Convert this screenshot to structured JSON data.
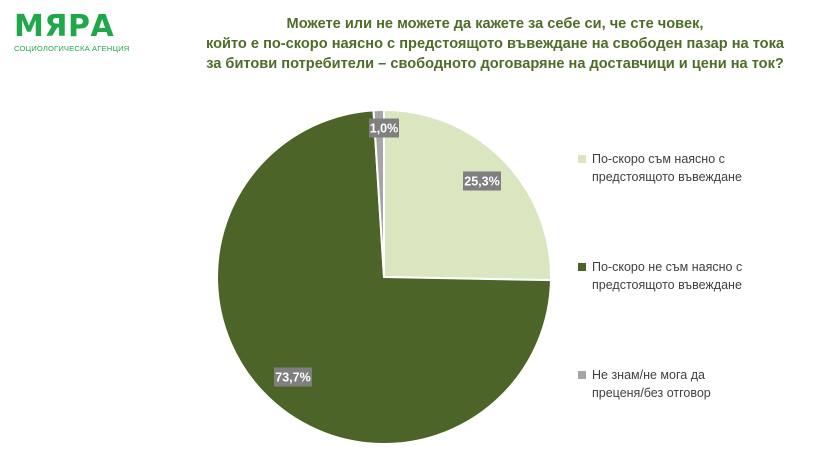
{
  "logo": {
    "name": "МЯРА",
    "subtitle": "СОЦИОЛОГИЧЕСКА АГЕНЦИЯ",
    "color": "#1fa84a"
  },
  "title_lines": [
    "Можете или не можете да кажете за себе си, че сте човек,",
    "който е по-скоро наясно с предстоящото въвеждане на свободен пазар на тока",
    "за битови потребители – свободното договаряне на доставчици и цени на ток?"
  ],
  "chart_data": {
    "type": "pie",
    "title": "Можете или не можете да кажете за себе си, че сте човек, който е по-скоро наясно с предстоящото въвеждане на свободен пазар на тока за битови потребители – свободното договаряне на доставчици и цени на ток?",
    "slices": [
      {
        "name": "По-скоро съм наясно с предстоящото въвеждане",
        "legend_lines": [
          "По-скоро съм наясно с",
          "предстоящото въвеждане"
        ],
        "value": 25.3,
        "label": "25,3%",
        "color": "#d9e6c0"
      },
      {
        "name": "По-скоро не съм наясно с предстоящото въвеждане",
        "legend_lines": [
          "По-скоро не съм наясно с",
          "предстоящото въвеждане"
        ],
        "value": 73.7,
        "label": "73,7%",
        "color": "#4d6428"
      },
      {
        "name": "Не знам/не мога да преценя/без отговор",
        "legend_lines": [
          "Не знам/не мога да",
          "преценя/без отговор"
        ],
        "value": 1.0,
        "label": "1,0%",
        "color": "#a6a6a6"
      }
    ],
    "start_angle": "12 o'clock, clockwise",
    "data_label_style": "white text on gray box",
    "label_box_color": "#7f7f7f",
    "legend_position": "right"
  }
}
